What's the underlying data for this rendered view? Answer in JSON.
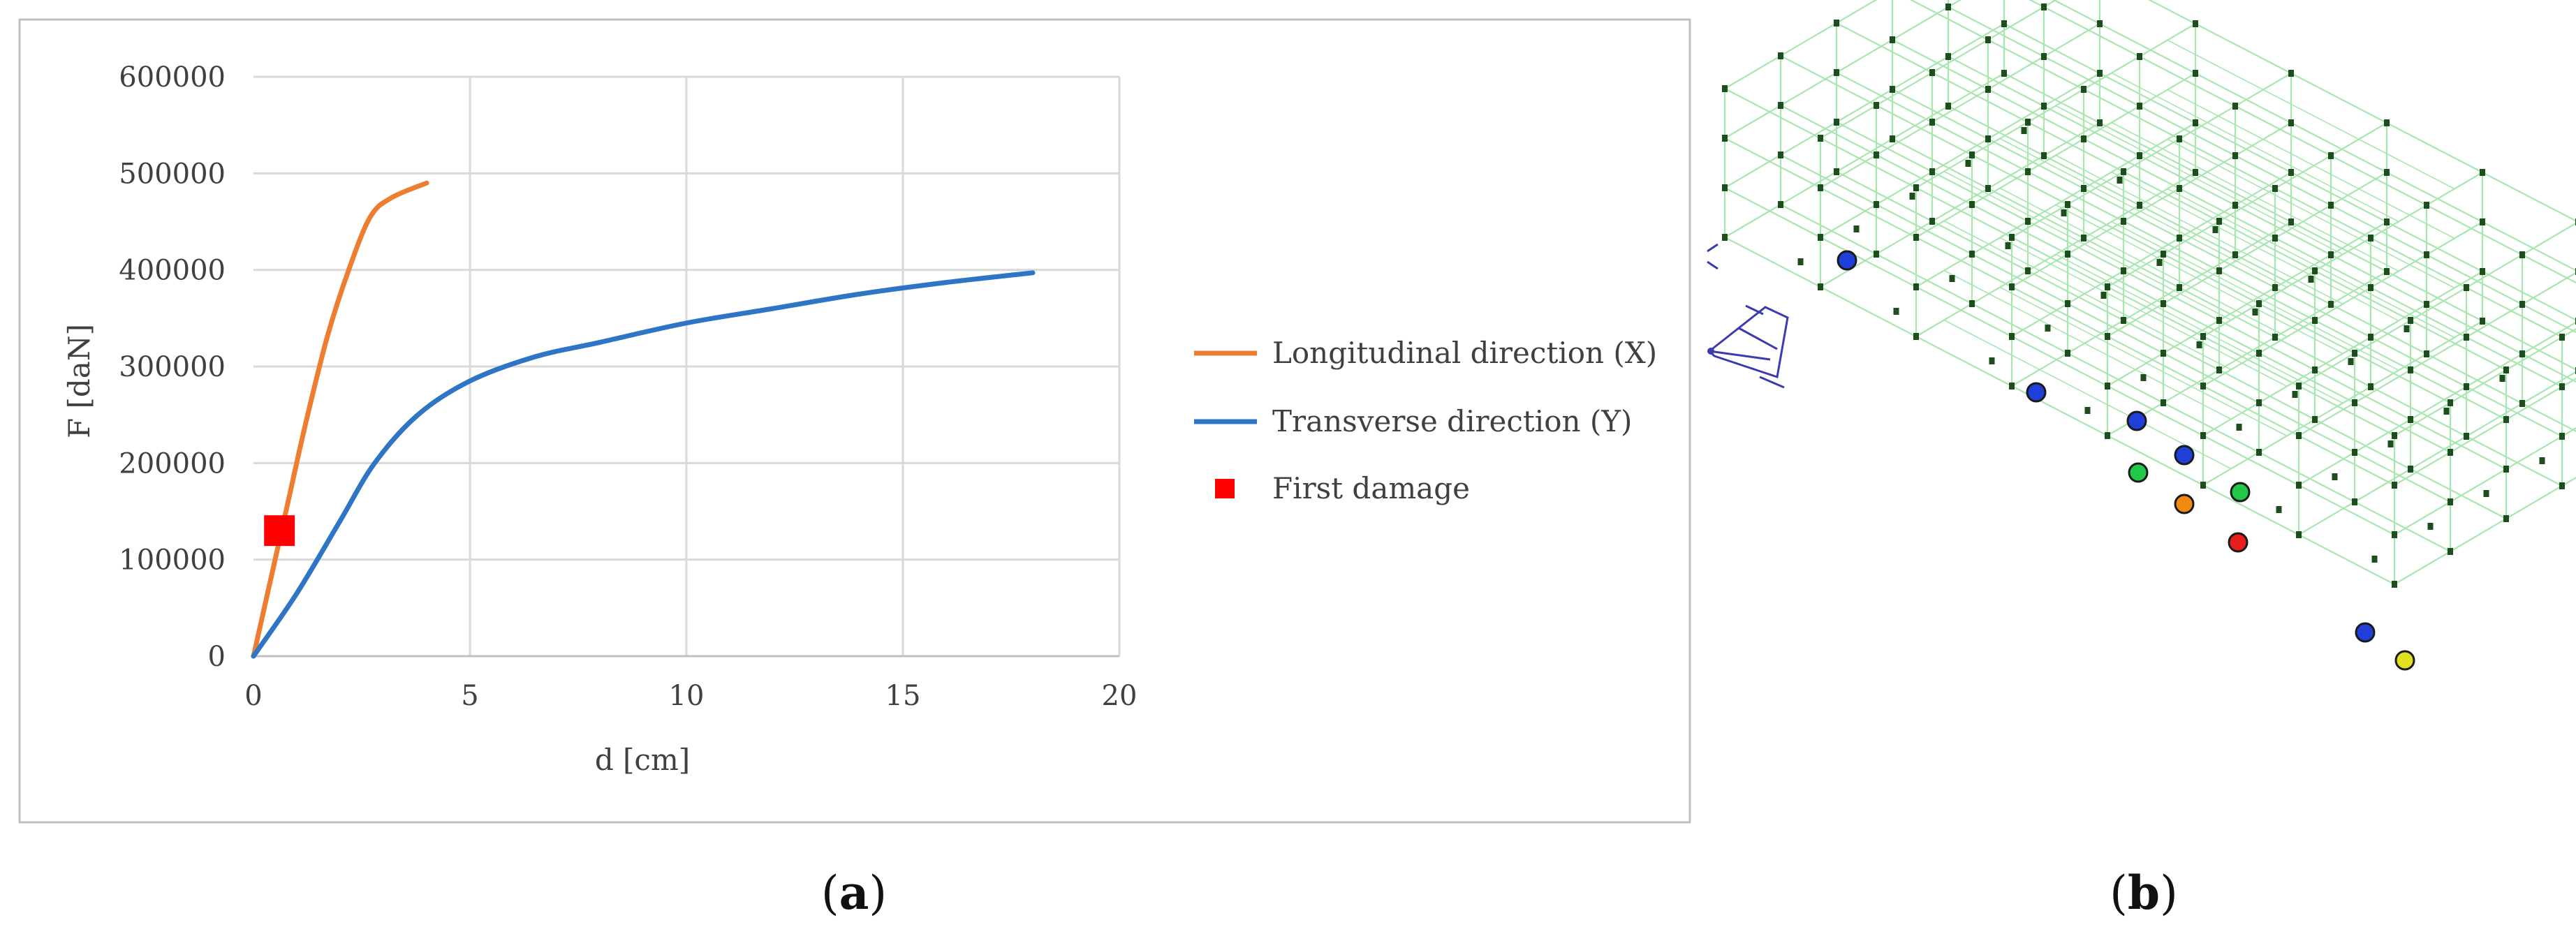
{
  "panel_labels": {
    "a": {
      "open": "(",
      "letter": "a",
      "close": ")"
    },
    "b": {
      "open": "(",
      "letter": "b",
      "close": ")"
    }
  },
  "chart_data": {
    "type": "line",
    "xlabel": "d [cm]",
    "ylabel": "F [daN]",
    "xlim": [
      0,
      20
    ],
    "ylim": [
      0,
      600000
    ],
    "x_ticks": [
      0,
      5,
      10,
      15,
      20
    ],
    "y_ticks": [
      0,
      100000,
      200000,
      300000,
      400000,
      500000,
      600000
    ],
    "grid": true,
    "legend_position": "right",
    "series": [
      {
        "name": "Longitudinal direction (X)",
        "color": "#ED7D31",
        "points": [
          [
            0,
            0
          ],
          [
            0.4,
            80000
          ],
          [
            0.8,
            160000
          ],
          [
            1.2,
            240000
          ],
          [
            1.7,
            330000
          ],
          [
            2.2,
            400000
          ],
          [
            2.7,
            455000
          ],
          [
            3.2,
            475000
          ],
          [
            4.0,
            490000
          ]
        ]
      },
      {
        "name": "Transverse direction (Y)",
        "color": "#2E75C6",
        "points": [
          [
            0,
            0
          ],
          [
            1,
            65000
          ],
          [
            2,
            140000
          ],
          [
            2.8,
            200000
          ],
          [
            3.8,
            250000
          ],
          [
            5,
            285000
          ],
          [
            6.5,
            310000
          ],
          [
            8,
            325000
          ],
          [
            10,
            345000
          ],
          [
            12,
            360000
          ],
          [
            14,
            375000
          ],
          [
            16,
            387000
          ],
          [
            18,
            397000
          ]
        ]
      },
      {
        "name": "First damage",
        "color": "#FF0000",
        "marker": "square",
        "points": [
          [
            0.6,
            130000
          ]
        ]
      }
    ]
  },
  "model_view": {
    "description_icon": "3d-frame-model",
    "grid_color": "#A8E6B0",
    "node_color": "#1E4D1E",
    "axis_glyph_color": "#3B3BB0",
    "markers": [
      {
        "color": "#1F3FD8"
      },
      {
        "color": "#1F3FD8"
      },
      {
        "color": "#1F3FD8"
      },
      {
        "color": "#1F3FD8"
      },
      {
        "color": "#22C84A"
      },
      {
        "color": "#F08A10"
      },
      {
        "color": "#22C84A"
      },
      {
        "color": "#E81E1E"
      },
      {
        "color": "#1F3FD8"
      },
      {
        "color": "#E0E020"
      }
    ]
  }
}
